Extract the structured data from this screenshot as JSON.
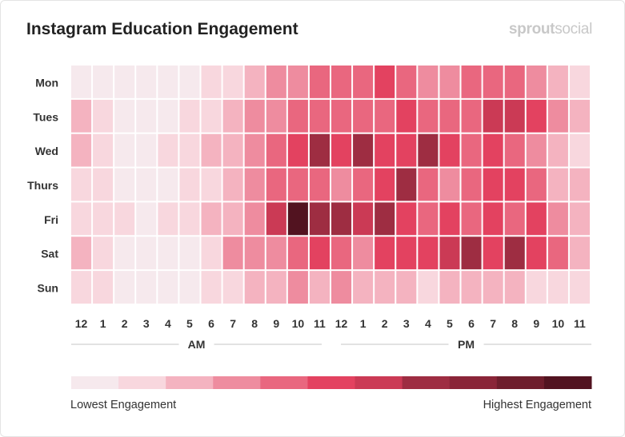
{
  "chart_data": {
    "type": "heatmap",
    "title": "Instagram Education Engagement",
    "rows": [
      "Mon",
      "Tues",
      "Wed",
      "Thurs",
      "Fri",
      "Sat",
      "Sun"
    ],
    "columns": [
      "12",
      "1",
      "2",
      "3",
      "4",
      "5",
      "6",
      "7",
      "8",
      "9",
      "10",
      "11",
      "12",
      "1",
      "2",
      "3",
      "4",
      "5",
      "6",
      "7",
      "8",
      "9",
      "10",
      "11"
    ],
    "period_labels": [
      "AM",
      "PM"
    ],
    "values": [
      [
        0,
        0,
        0,
        0,
        0,
        0,
        1,
        1,
        2,
        3,
        3,
        4,
        4,
        4,
        5,
        4,
        3,
        3,
        4,
        4,
        4,
        3,
        2,
        1
      ],
      [
        2,
        1,
        0,
        0,
        0,
        1,
        1,
        2,
        3,
        3,
        4,
        4,
        4,
        4,
        4,
        5,
        4,
        4,
        4,
        6,
        6,
        5,
        3,
        2
      ],
      [
        2,
        1,
        0,
        0,
        1,
        1,
        2,
        2,
        3,
        4,
        5,
        7,
        5,
        7,
        5,
        5,
        7,
        5,
        4,
        5,
        4,
        3,
        2,
        1
      ],
      [
        1,
        1,
        0,
        0,
        0,
        1,
        1,
        2,
        3,
        4,
        4,
        4,
        3,
        4,
        5,
        7,
        4,
        3,
        4,
        5,
        5,
        4,
        2,
        2
      ],
      [
        1,
        1,
        1,
        0,
        1,
        1,
        2,
        2,
        3,
        6,
        10,
        7,
        7,
        6,
        7,
        5,
        4,
        5,
        4,
        5,
        4,
        5,
        3,
        2
      ],
      [
        2,
        1,
        0,
        0,
        0,
        0,
        1,
        3,
        3,
        3,
        4,
        5,
        4,
        3,
        5,
        5,
        5,
        6,
        7,
        5,
        7,
        5,
        4,
        2
      ],
      [
        1,
        1,
        0,
        0,
        0,
        0,
        1,
        1,
        2,
        2,
        3,
        2,
        3,
        2,
        2,
        2,
        1,
        2,
        2,
        2,
        2,
        1,
        1,
        1
      ]
    ],
    "scale_range": [
      0,
      10
    ],
    "scale_colors": [
      "#f6e9ed",
      "#f8d7de",
      "#f4b3c0",
      "#ee8c9f",
      "#e9677f",
      "#e34260",
      "#cb3a55",
      "#9e2d42",
      "#8a2538",
      "#6e1d2c",
      "#521320"
    ],
    "legend": {
      "low_label": "Lowest Engagement",
      "high_label": "Highest Engagement",
      "placement": "bottom"
    }
  },
  "brand": {
    "bold": "sprout",
    "light": "social"
  }
}
